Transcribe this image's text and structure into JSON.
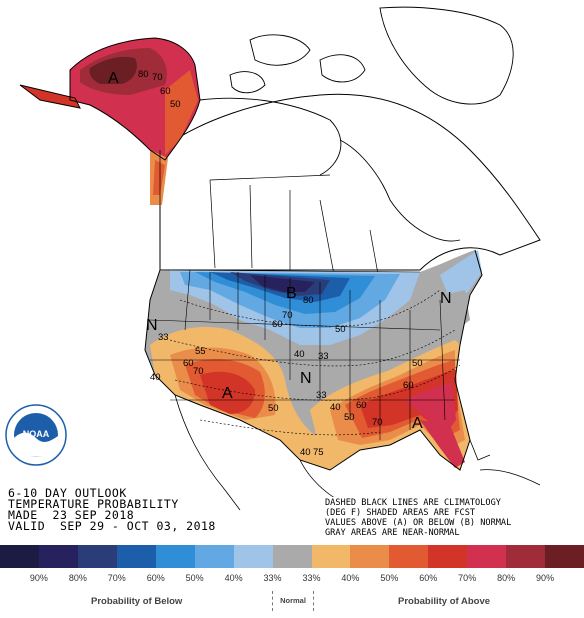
{
  "title": {
    "line1": "6-10 DAY OUTLOOK",
    "line2": "TEMPERATURE PROBABILITY",
    "line3": "MADE  23 SEP 2018",
    "line4": "VALID  SEP 29 - OCT 03, 2018"
  },
  "notes": {
    "line1": "DASHED BLACK LINES ARE CLIMATOLOGY",
    "line2": "(DEG F) SHADED AREAS ARE FCST",
    "line3": "VALUES ABOVE (A) OR BELOW (B) NORMAL",
    "line4": "GRAY AREAS ARE NEAR-NORMAL"
  },
  "logo": {
    "text": "NOAA"
  },
  "region_labels": {
    "alaska": "A",
    "north_central": "B",
    "northwest": "N",
    "midwest": "N",
    "northeast": "N",
    "southwest": "A",
    "southeast": "A"
  },
  "contour_labels": {
    "ak_80": "80",
    "ak_70": "70",
    "ak_60": "60",
    "ak_50": "50",
    "nc_80": "80",
    "nc_70": "70",
    "nc_60": "60",
    "nc_50": "50",
    "nc_40": "40",
    "w_33": "33",
    "w_55": "55",
    "w_60": "60",
    "w_70": "70",
    "w_50": "50",
    "w_40": "40",
    "w_40b": "40",
    "c_33": "33",
    "c_33b": "33",
    "c_75": "75",
    "se_50": "50",
    "se_60": "60",
    "se_70": "70",
    "se_60b": "60",
    "se_50b": "50",
    "se_40": "40"
  },
  "legend": {
    "colors": [
      "#1c1b43",
      "#27225e",
      "#2b3d78",
      "#1d5eab",
      "#2f8ed6",
      "#62a8e3",
      "#a0c4e8",
      "#aaaaaa",
      "#f2b86a",
      "#ea8d4a",
      "#e25a32",
      "#d23427",
      "#d1304e",
      "#a12c39",
      "#6b1f24"
    ],
    "labels": [
      "90%",
      "80%",
      "70%",
      "60%",
      "50%",
      "40%",
      "33%",
      "33%",
      "40%",
      "50%",
      "60%",
      "70%",
      "80%",
      "90%"
    ],
    "below_caption": "Probability of Below",
    "normal_caption": "Normal",
    "above_caption": "Probability of Above"
  }
}
